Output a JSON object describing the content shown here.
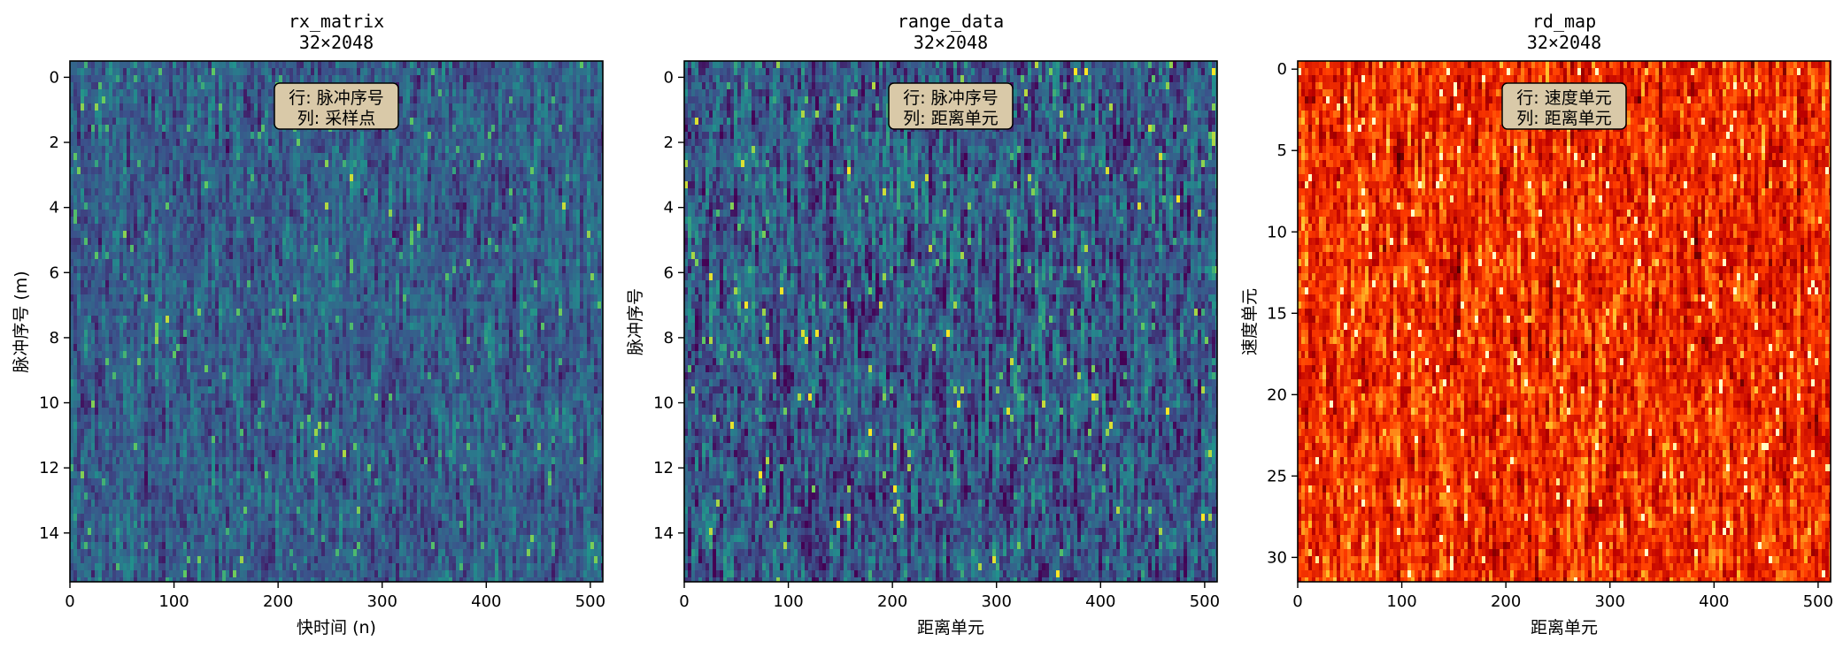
{
  "chart_data": [
    {
      "type": "heatmap",
      "title": "rx_matrix",
      "subtitle": "32×2048",
      "xlabel": "快时间 (n)",
      "ylabel": "脉冲序号 (m)",
      "xlim": [
        0,
        512
      ],
      "ylim": [
        15.5,
        -0.5
      ],
      "x_ticks": [
        "0",
        "100",
        "200",
        "300",
        "400",
        "500"
      ],
      "x_tick_values": [
        0,
        100,
        200,
        300,
        400,
        500
      ],
      "y_ticks": [
        "0",
        "2",
        "4",
        "6",
        "8",
        "10",
        "12",
        "14"
      ],
      "y_tick_values": [
        0,
        2,
        4,
        6,
        8,
        10,
        12,
        14
      ],
      "annotation": [
        "行: 脉冲序号",
        "列: 采样点"
      ],
      "colormap": "viridis",
      "rows": 16,
      "value_range": [
        0,
        1
      ],
      "mean_level": 0.3,
      "spread": 0.32
    },
    {
      "type": "heatmap",
      "title": "range_data",
      "subtitle": "32×2048",
      "xlabel": "距离单元",
      "ylabel": "脉冲序号",
      "xlim": [
        0,
        512
      ],
      "ylim": [
        15.5,
        -0.5
      ],
      "x_ticks": [
        "0",
        "100",
        "200",
        "300",
        "400",
        "500"
      ],
      "x_tick_values": [
        0,
        100,
        200,
        300,
        400,
        500
      ],
      "y_ticks": [
        "0",
        "2",
        "4",
        "6",
        "8",
        "10",
        "12",
        "14"
      ],
      "y_tick_values": [
        0,
        2,
        4,
        6,
        8,
        10,
        12,
        14
      ],
      "annotation": [
        "行: 脉冲序号",
        "列: 距离单元"
      ],
      "colormap": "viridis",
      "rows": 16,
      "value_range": [
        0,
        1
      ],
      "mean_level": 0.28,
      "spread": 0.45
    },
    {
      "type": "heatmap",
      "title": "rd_map",
      "subtitle": "32×2048",
      "xlabel": "距离单元",
      "ylabel": "速度单元",
      "xlim": [
        0,
        512
      ],
      "ylim": [
        31.5,
        -0.5
      ],
      "x_ticks": [
        "0",
        "100",
        "200",
        "300",
        "400",
        "500"
      ],
      "x_tick_values": [
        0,
        100,
        200,
        300,
        400,
        500
      ],
      "y_ticks": [
        "0",
        "5",
        "10",
        "15",
        "20",
        "25",
        "30"
      ],
      "y_tick_values": [
        0,
        5,
        10,
        15,
        20,
        25,
        30
      ],
      "annotation": [
        "行: 速度单元",
        "列: 距离单元"
      ],
      "colormap": "hot",
      "rows": 32,
      "value_range": [
        0,
        1
      ],
      "mean_level": 0.55,
      "spread": 0.4
    }
  ],
  "colors": {
    "annotation_box_fill": "#d9c9a8",
    "annotation_box_stroke": "#000000",
    "axis": "#000000",
    "background": "#ffffff"
  }
}
